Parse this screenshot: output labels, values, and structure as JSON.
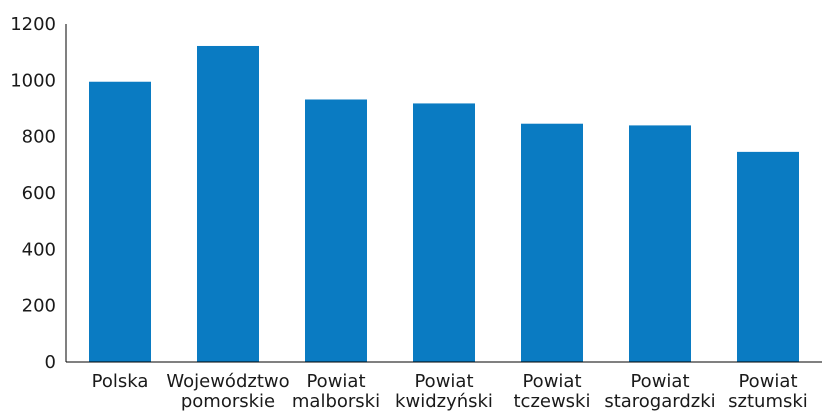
{
  "chart_data": {
    "type": "bar",
    "categories": [
      [
        "Polska"
      ],
      [
        "Województwo",
        "pomorskie"
      ],
      [
        "Powiat",
        "malborski"
      ],
      [
        "Powiat",
        "kwidzyński"
      ],
      [
        "Powiat",
        "tczewski"
      ],
      [
        "Powiat",
        "starogardzki"
      ],
      [
        "Powiat",
        "sztumski"
      ]
    ],
    "values": [
      995,
      1122,
      932,
      918,
      846,
      840,
      746
    ],
    "title": "",
    "xlabel": "",
    "ylabel": "",
    "ylim": [
      0,
      1200
    ],
    "yticks": [
      "0",
      "200",
      "400",
      "600",
      "800",
      "1000",
      "1200"
    ],
    "grid": false,
    "legend": "none",
    "bar_color": "#0a7bc2"
  }
}
